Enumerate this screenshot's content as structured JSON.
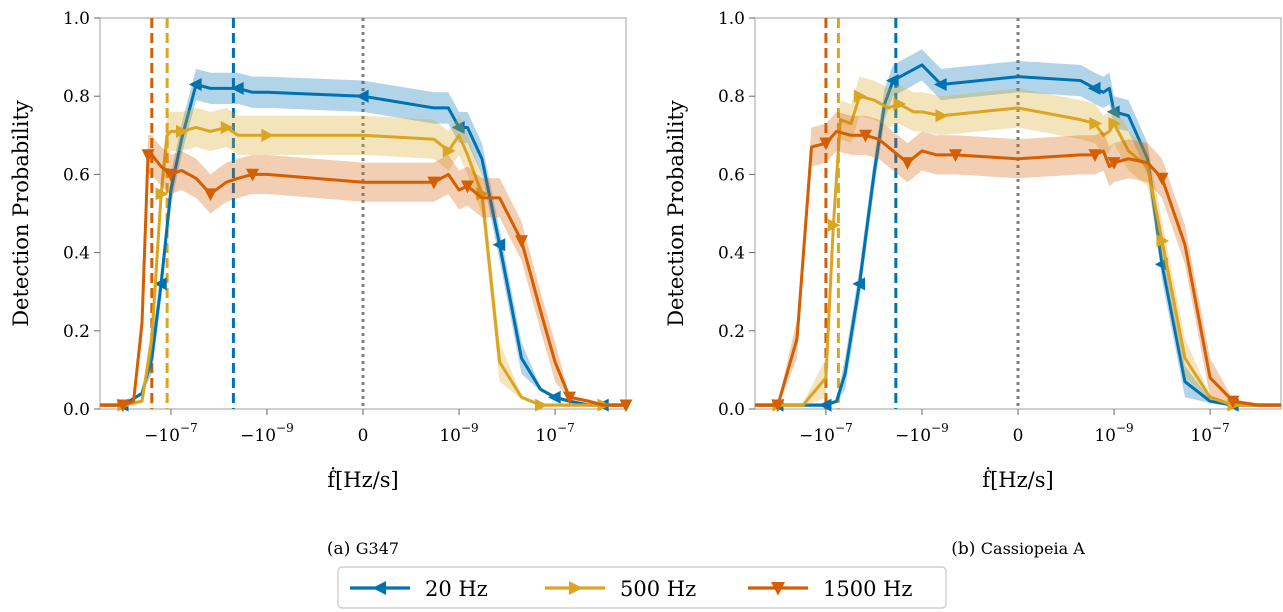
{
  "chart_data": [
    {
      "type": "line",
      "caption_prefix": "(a)",
      "caption": "G347",
      "xlabel": "ḟ[Hz/s]",
      "ylabel": "Detection Probability",
      "x_scale": "symlog",
      "xlim": [
        -3e-06,
        3e-06
      ],
      "ylim": [
        0,
        1
      ],
      "yticks": [
        0.0,
        0.2,
        0.4,
        0.6,
        0.8,
        1.0
      ],
      "ytick_labels": [
        "0.0",
        "0.2",
        "0.4",
        "0.6",
        "0.8",
        "1.0"
      ],
      "xticks": [
        -1e-07,
        -1e-09,
        0,
        1e-09,
        1e-07
      ],
      "xtick_labels": [
        {
          "base": "−10",
          "exp": "−7"
        },
        {
          "base": "−10",
          "exp": "−9"
        },
        {
          "base": "0",
          "exp": ""
        },
        {
          "base": "10",
          "exp": "−9"
        },
        {
          "base": "10",
          "exp": "−7"
        }
      ],
      "grid": false,
      "vlines": [
        {
          "x": -2.5e-07,
          "series": "1500 Hz",
          "style": "dashed"
        },
        {
          "x": -1.2e-07,
          "series": "500 Hz",
          "style": "dashed"
        },
        {
          "x": -5e-09,
          "series": "20 Hz",
          "style": "dashed"
        },
        {
          "x": 0,
          "series": "reference",
          "style": "dotted"
        }
      ],
      "series": [
        {
          "name": "20 Hz",
          "x": [
            -3e-06,
            -1e-06,
            -4e-07,
            -2.5e-07,
            -1.6e-07,
            -1e-07,
            -6e-08,
            -3e-08,
            -1.5e-08,
            -7e-09,
            -4e-09,
            -2e-09,
            -1e-09,
            0,
            3e-10,
            6e-10,
            1e-09,
            1.5e-09,
            3e-09,
            7e-09,
            2e-08,
            5e-08,
            1e-07,
            2e-07,
            5e-07,
            1e-06,
            3e-06
          ],
          "y": [
            0.01,
            0.01,
            0.04,
            0.13,
            0.32,
            0.56,
            0.69,
            0.83,
            0.82,
            0.82,
            0.82,
            0.81,
            0.81,
            0.8,
            0.77,
            0.77,
            0.72,
            0.72,
            0.64,
            0.42,
            0.13,
            0.05,
            0.03,
            0.02,
            0.01,
            0.01,
            0.01
          ],
          "band": 0.04
        },
        {
          "name": "500 Hz",
          "x": [
            -3e-06,
            -1e-06,
            -4e-07,
            -2.5e-07,
            -1.6e-07,
            -1.2e-07,
            -1e-07,
            -6e-08,
            -3e-08,
            -1.5e-08,
            -7e-09,
            -4e-09,
            -2e-09,
            -1e-09,
            0,
            3e-10,
            6e-10,
            1e-09,
            1.5e-09,
            3e-09,
            7e-09,
            2e-08,
            5e-08,
            1e-07,
            3e-07,
            1e-06,
            3e-06
          ],
          "y": [
            0.01,
            0.01,
            0.02,
            0.18,
            0.55,
            0.7,
            0.71,
            0.71,
            0.72,
            0.71,
            0.72,
            0.7,
            0.7,
            0.7,
            0.7,
            0.69,
            0.66,
            0.7,
            0.65,
            0.55,
            0.12,
            0.03,
            0.01,
            0.01,
            0.01,
            0.01,
            0.01
          ],
          "band": 0.05
        },
        {
          "name": "1500 Hz",
          "x": [
            -3e-06,
            -1e-06,
            -6e-07,
            -4e-07,
            -3e-07,
            -2.5e-07,
            -1.6e-07,
            -1e-07,
            -6e-08,
            -3e-08,
            -1.5e-08,
            -7e-09,
            -4e-09,
            -2e-09,
            -1e-09,
            0,
            3e-10,
            6e-10,
            1e-09,
            1.5e-09,
            3e-09,
            7e-09,
            2e-08,
            5e-08,
            1e-07,
            2e-07,
            5e-07,
            1e-06,
            3e-06
          ],
          "y": [
            0.01,
            0.01,
            0.02,
            0.22,
            0.65,
            0.65,
            0.62,
            0.6,
            0.61,
            0.59,
            0.55,
            0.58,
            0.59,
            0.6,
            0.6,
            0.58,
            0.58,
            0.6,
            0.56,
            0.57,
            0.54,
            0.54,
            0.43,
            0.25,
            0.12,
            0.03,
            0.02,
            0.01,
            0.01
          ],
          "band": 0.05
        }
      ]
    },
    {
      "type": "line",
      "caption_prefix": "(b)",
      "caption": "Cassiopeia A",
      "xlabel": "ḟ[Hz/s]",
      "ylabel": "Detection Probability",
      "x_scale": "symlog",
      "xlim": [
        -3e-06,
        3e-06
      ],
      "ylim": [
        0,
        1
      ],
      "yticks": [
        0.0,
        0.2,
        0.4,
        0.6,
        0.8,
        1.0
      ],
      "ytick_labels": [
        "0.0",
        "0.2",
        "0.4",
        "0.6",
        "0.8",
        "1.0"
      ],
      "xticks": [
        -1e-07,
        -1e-09,
        0,
        1e-09,
        1e-07
      ],
      "xtick_labels": [
        {
          "base": "−10",
          "exp": "−7"
        },
        {
          "base": "−10",
          "exp": "−9"
        },
        {
          "base": "0",
          "exp": ""
        },
        {
          "base": "10",
          "exp": "−9"
        },
        {
          "base": "10",
          "exp": "−7"
        }
      ],
      "grid": false,
      "vlines": [
        {
          "x": -1e-07,
          "series": "1500 Hz",
          "style": "dashed"
        },
        {
          "x": -5.5e-08,
          "series": "500 Hz",
          "style": "dashed"
        },
        {
          "x": -3.5e-09,
          "series": "20 Hz",
          "style": "dashed"
        },
        {
          "x": 0,
          "series": "reference",
          "style": "dotted"
        }
      ],
      "series": [
        {
          "name": "20 Hz",
          "x": [
            -3e-06,
            -1e-06,
            -6e-07,
            -3e-07,
            -1e-07,
            -6e-08,
            -4e-08,
            -2e-08,
            -1e-08,
            -6e-09,
            -4e-09,
            -2e-09,
            -1e-09,
            -4e-10,
            0,
            2e-10,
            4e-10,
            6e-10,
            8e-10,
            1e-09,
            2e-09,
            5e-09,
            1e-08,
            3e-08,
            1e-07,
            3e-07,
            1e-06,
            3e-06
          ],
          "y": [
            0.01,
            0.01,
            0.01,
            0.01,
            0.01,
            0.02,
            0.09,
            0.32,
            0.6,
            0.78,
            0.84,
            0.86,
            0.88,
            0.83,
            0.85,
            0.84,
            0.82,
            0.81,
            0.82,
            0.76,
            0.75,
            0.64,
            0.37,
            0.07,
            0.02,
            0.01,
            0.01,
            0.01
          ],
          "band": 0.04
        },
        {
          "name": "500 Hz",
          "x": [
            -3e-06,
            -1e-06,
            -3e-07,
            -1e-07,
            -7e-08,
            -5e-08,
            -3e-08,
            -2e-08,
            -1e-08,
            -5e-09,
            -3e-09,
            -1.5e-09,
            -1e-09,
            -4e-10,
            0,
            2e-10,
            4e-10,
            6e-10,
            8e-10,
            1e-09,
            2e-09,
            5e-09,
            1e-08,
            3e-08,
            1e-07,
            3e-07,
            1e-06,
            3e-06
          ],
          "y": [
            0.01,
            0.01,
            0.01,
            0.08,
            0.47,
            0.74,
            0.73,
            0.8,
            0.79,
            0.77,
            0.78,
            0.76,
            0.76,
            0.75,
            0.77,
            0.74,
            0.73,
            0.7,
            0.71,
            0.73,
            0.66,
            0.62,
            0.43,
            0.13,
            0.03,
            0.01,
            0.01,
            0.01
          ],
          "band": 0.05
        },
        {
          "name": "1500 Hz",
          "x": [
            -3e-06,
            -1e-06,
            -4e-07,
            -2e-07,
            -1e-07,
            -6e-08,
            -3e-08,
            -1.5e-08,
            -8e-09,
            -4e-09,
            -2e-09,
            -1e-09,
            -5e-10,
            -2e-10,
            0,
            2e-10,
            4e-10,
            6e-10,
            8e-10,
            1e-09,
            2e-09,
            5e-09,
            1e-08,
            3e-08,
            1e-07,
            3e-07,
            1e-06,
            3e-06
          ],
          "y": [
            0.01,
            0.01,
            0.18,
            0.67,
            0.68,
            0.71,
            0.7,
            0.7,
            0.69,
            0.66,
            0.63,
            0.66,
            0.65,
            0.65,
            0.64,
            0.65,
            0.65,
            0.66,
            0.62,
            0.63,
            0.64,
            0.63,
            0.59,
            0.42,
            0.08,
            0.02,
            0.01,
            0.01
          ],
          "band": 0.05
        }
      ]
    }
  ],
  "legend": {
    "placement": "bottom-center",
    "entries": [
      {
        "label": "20 Hz",
        "series": "20 Hz"
      },
      {
        "label": "500 Hz",
        "series": "500 Hz"
      },
      {
        "label": "1500 Hz",
        "series": "1500 Hz"
      }
    ]
  },
  "styles": {
    "colors": {
      "20 Hz": "#0072B2",
      "500 Hz": "#DAA520",
      "1500 Hz": "#D55E00",
      "reference": "#808080",
      "axes": "#b0b0b0",
      "text": "#000000"
    },
    "markers": {
      "20 Hz": "triangle-left",
      "500 Hz": "triangle-right",
      "1500 Hz": "triangle-down"
    }
  }
}
